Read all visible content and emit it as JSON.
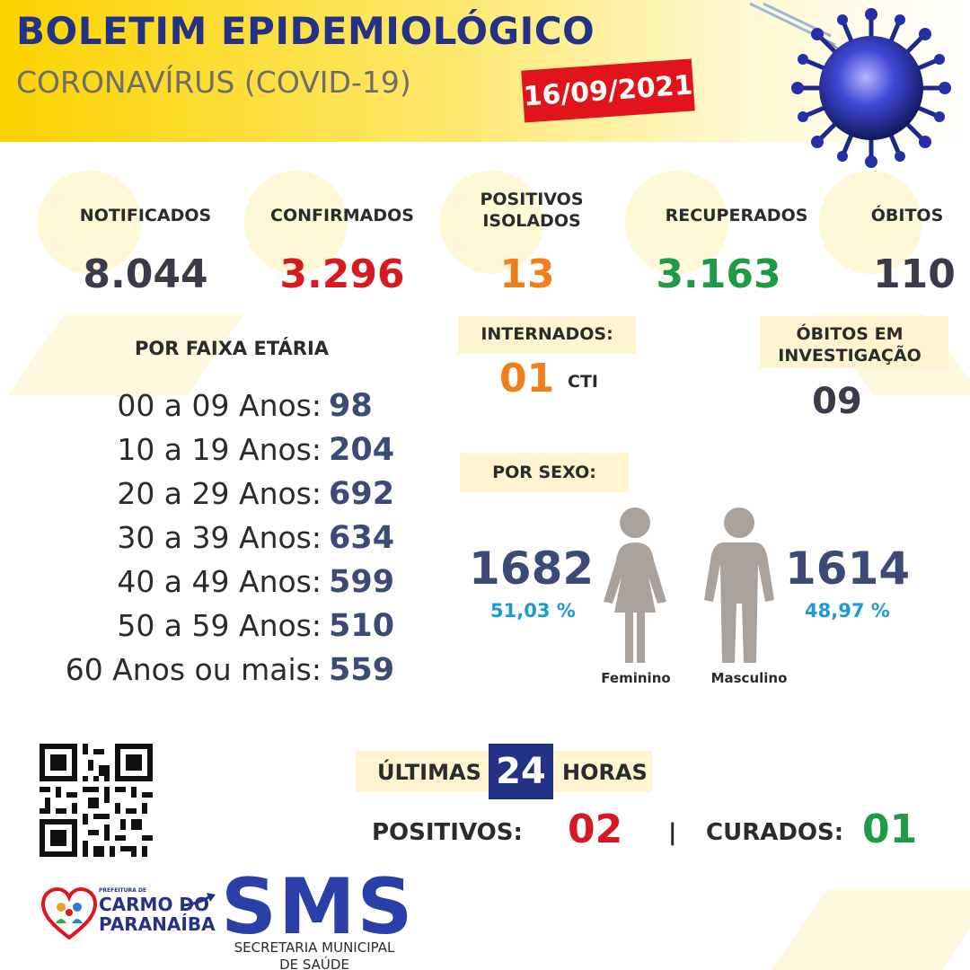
{
  "header": {
    "title": "BOLETIM EPIDEMIOLÓGICO",
    "subtitle": "CORONAVÍRUS (COVID-19)",
    "date": "16/09/2021",
    "accent_color": "#fbd300",
    "title_color": "#233187",
    "date_badge_color": "#e1141b"
  },
  "stats": [
    {
      "label": "NOTIFICADOS",
      "value": "8.044",
      "color": "#3a3a4a"
    },
    {
      "label": "CONFIRMADOS",
      "value": "3.296",
      "color": "#d71920"
    },
    {
      "label": "POSITIVOS ISOLADOS",
      "label_line1": "POSITIVOS",
      "label_line2": "ISOLADOS",
      "value": "13",
      "color": "#ef7f1a"
    },
    {
      "label": "RECUPERADOS",
      "value": "3.163",
      "color": "#1f9a46"
    },
    {
      "label": "ÓBITOS",
      "value": "110",
      "color": "#3a3a4a"
    }
  ],
  "internados": {
    "label": "INTERNADOS:",
    "value": "01",
    "unit": "CTI",
    "value_color": "#ef7f1a"
  },
  "obitos_investigacao": {
    "label_line1": "ÓBITOS EM",
    "label_line2": "INVESTIGAÇÃO",
    "value": "09"
  },
  "age": {
    "title": "POR FAIXA ETÁRIA",
    "rows": [
      {
        "label": "00 a 09 Anos:",
        "value": "98"
      },
      {
        "label": "10 a 19 Anos:",
        "value": "204"
      },
      {
        "label": "20 a 29 Anos:",
        "value": "692"
      },
      {
        "label": "30 a 39 Anos:",
        "value": "634"
      },
      {
        "label": "40 a 49 Anos:",
        "value": "599"
      },
      {
        "label": "50 a 59 Anos:",
        "value": "510"
      },
      {
        "label": "60 Anos ou mais:",
        "value": "559"
      }
    ]
  },
  "sex": {
    "title": "POR SEXO:",
    "female": {
      "count": "1682",
      "percent": "51,03 %",
      "label": "Feminino"
    },
    "male": {
      "count": "1614",
      "percent": "48,97 %",
      "label": "Masculino"
    }
  },
  "last24": {
    "prefix": "ÚLTIMAS",
    "hours": "24",
    "suffix": "HORAS",
    "positivos_label": "POSITIVOS:",
    "positivos_value": "02",
    "separator": "|",
    "curados_label": "CURADOS:",
    "curados_value": "01"
  },
  "footer": {
    "qr_icon": "qr-code-icon",
    "prefeitura_small": "PREFEITURA DE",
    "prefeitura_line1": "CARMO DO",
    "prefeitura_line2": "PARANAÍBA",
    "sms": "SMS",
    "sms_sub_line1": "SECRETARIA MUNICIPAL",
    "sms_sub_line2": "DE SAÚDE"
  }
}
